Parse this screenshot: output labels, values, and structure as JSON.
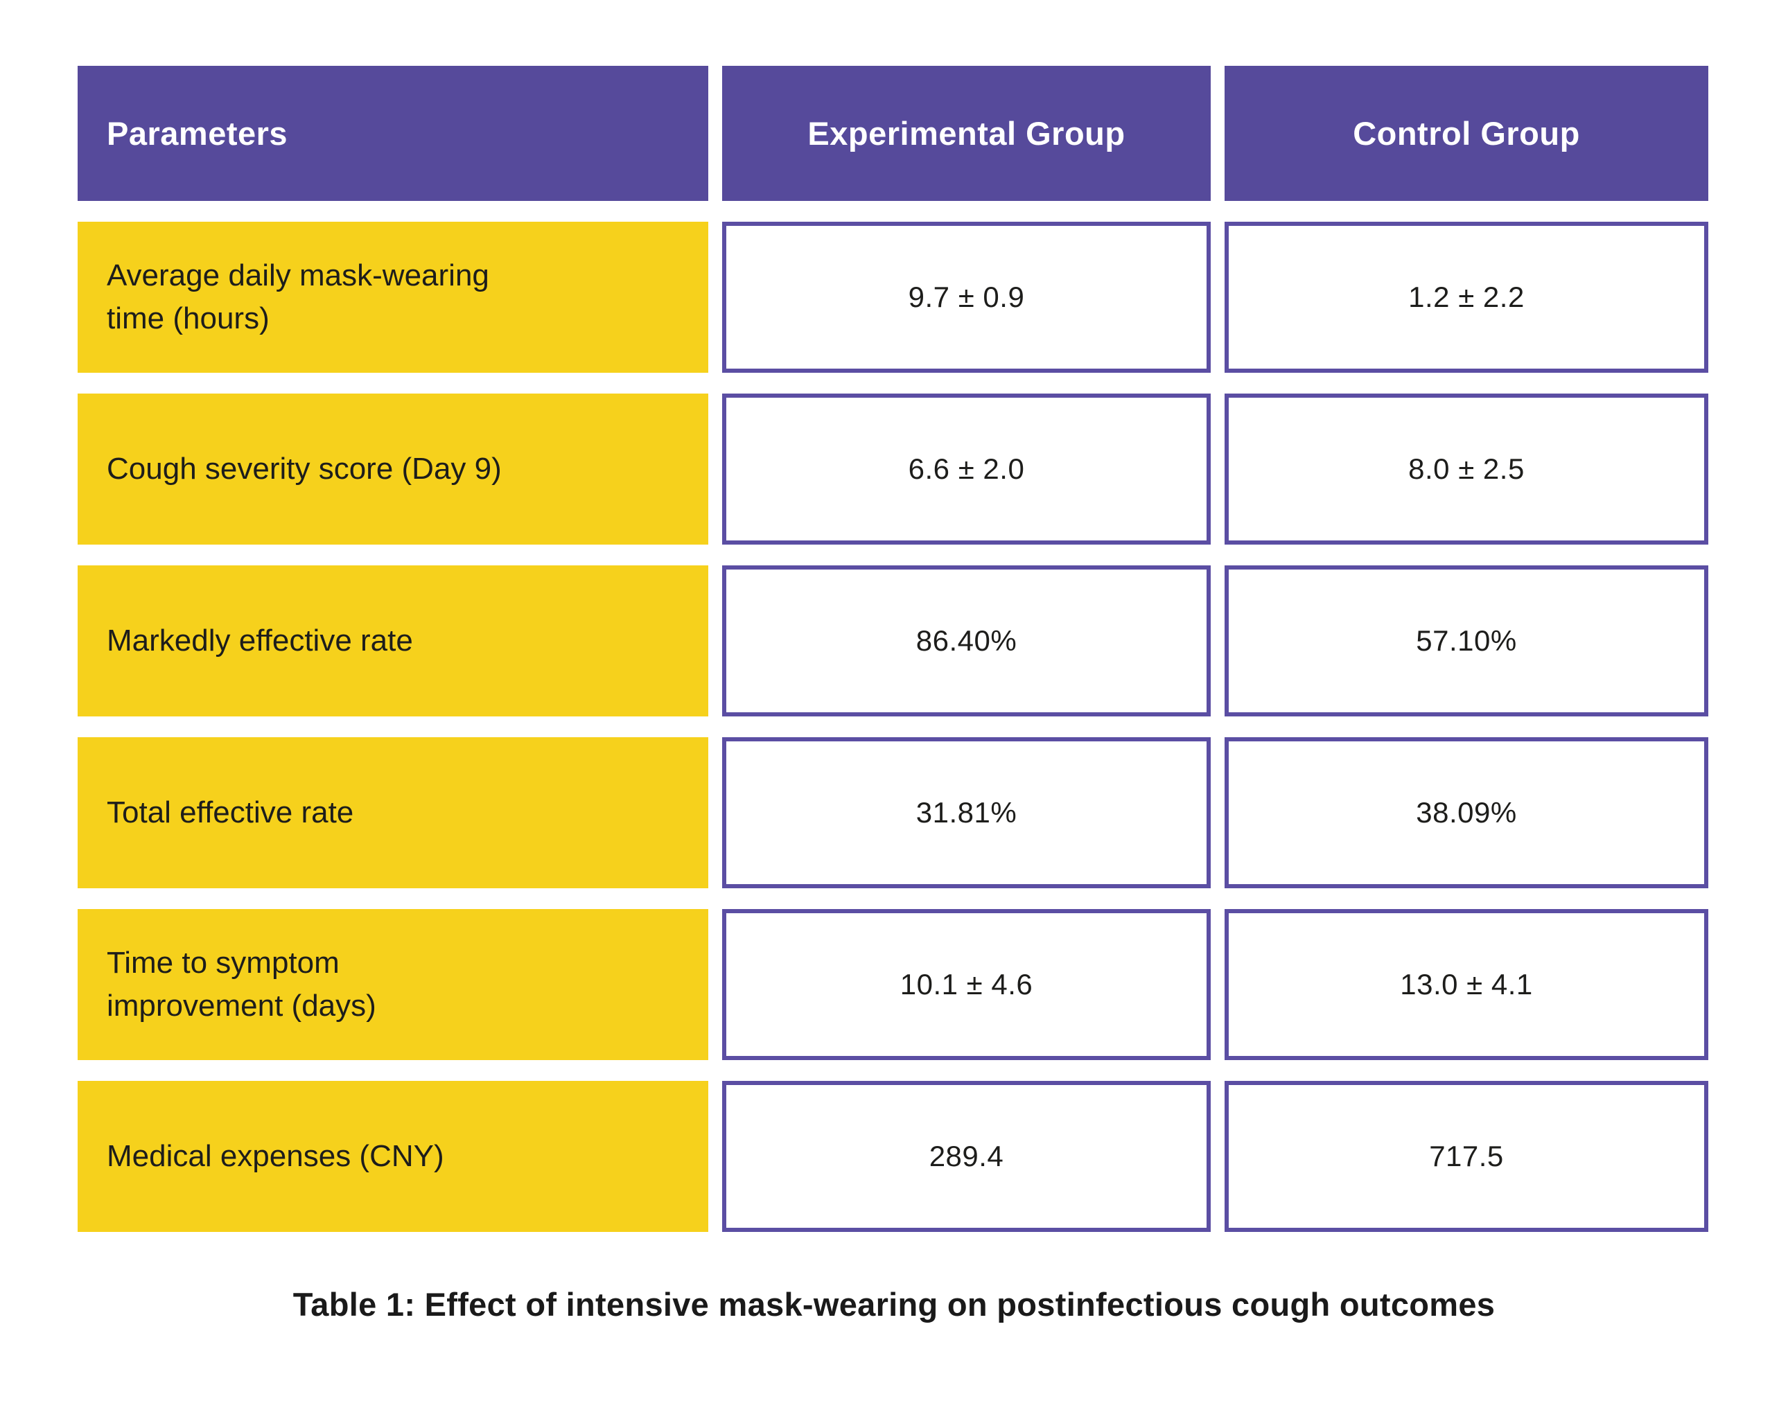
{
  "chart_data": {
    "type": "table",
    "title": "Table 1: Effect of intensive mask-wearing on postinfectious cough outcomes",
    "columns": [
      "Parameters",
      "Experimental Group",
      "Control Group"
    ],
    "rows": [
      {
        "parameter": "Average daily mask-wearing\ntime (hours)",
        "experimental": "9.7 ± 0.9",
        "control": "1.2 ± 2.2"
      },
      {
        "parameter": "Cough severity score (Day 9)",
        "experimental": "6.6 ± 2.0",
        "control": "8.0 ± 2.5"
      },
      {
        "parameter": "Markedly effective rate",
        "experimental": "86.40%",
        "control": "57.10%"
      },
      {
        "parameter": "Total effective rate",
        "experimental": "31.81%",
        "control": "38.09%"
      },
      {
        "parameter": "Time to symptom\nimprovement (days)",
        "experimental": "10.1 ± 4.6",
        "control": "13.0 ± 4.1"
      },
      {
        "parameter": "Medical expenses (CNY)",
        "experimental": "289.4",
        "control": "717.5"
      }
    ],
    "layout": {
      "legend": "none",
      "grid": "off"
    }
  },
  "colors": {
    "header_bg": "#564A9B",
    "value_cell_border": "#5B4EA3",
    "parameter_bg": "#F6D11C",
    "text": "#1D1D1B",
    "header_text": "#FFFFFF"
  }
}
